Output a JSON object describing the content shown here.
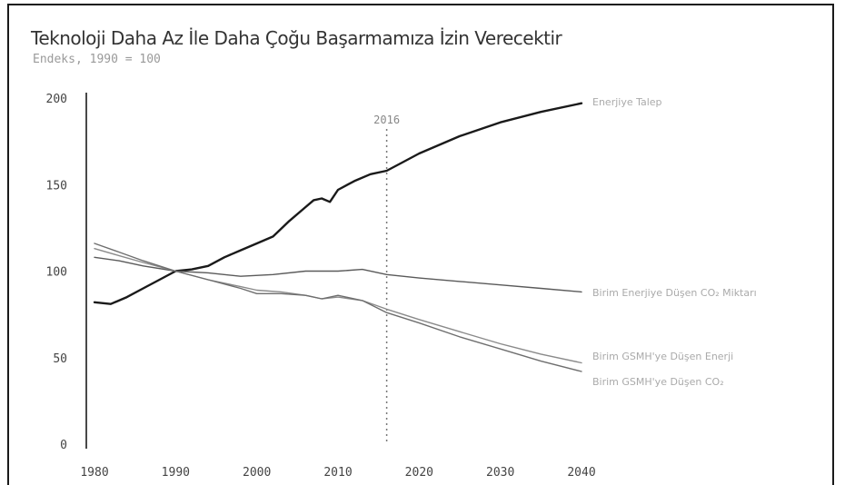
{
  "chart_data": {
    "type": "line",
    "title": "Teknoloji Daha Az İle Daha Çoğu Başarmamıza İzin Verecektir",
    "subtitle": "Endeks, 1990 = 100",
    "xlabel": "",
    "ylabel": "",
    "xlim": [
      1980,
      2040
    ],
    "ylim": [
      0,
      200
    ],
    "x_ticks": [
      1980,
      1990,
      2000,
      2010,
      2020,
      2030,
      2040
    ],
    "y_ticks": [
      0,
      50,
      100,
      150,
      200
    ],
    "grid": false,
    "annotation": {
      "x": 2016,
      "label": "2016",
      "style": "dotted"
    },
    "series": [
      {
        "name": "Enerjiye Talep",
        "color": "#1a1a1a",
        "points": [
          [
            1980,
            82
          ],
          [
            1982,
            81
          ],
          [
            1984,
            85
          ],
          [
            1986,
            90
          ],
          [
            1988,
            95
          ],
          [
            1990,
            100
          ],
          [
            1992,
            101
          ],
          [
            1994,
            103
          ],
          [
            1996,
            108
          ],
          [
            1998,
            112
          ],
          [
            2000,
            116
          ],
          [
            2002,
            120
          ],
          [
            2004,
            129
          ],
          [
            2006,
            137
          ],
          [
            2007,
            141
          ],
          [
            2008,
            142
          ],
          [
            2009,
            140
          ],
          [
            2010,
            147
          ],
          [
            2012,
            152
          ],
          [
            2014,
            156
          ],
          [
            2016,
            158
          ],
          [
            2018,
            163
          ],
          [
            2020,
            168
          ],
          [
            2025,
            178
          ],
          [
            2030,
            186
          ],
          [
            2035,
            192
          ],
          [
            2040,
            197
          ]
        ]
      },
      {
        "name": "Birim Enerjiye Düşen CO₂ Miktarı",
        "color": "#5a5a5a",
        "points": [
          [
            1980,
            108
          ],
          [
            1983,
            106
          ],
          [
            1986,
            103
          ],
          [
            1990,
            100
          ],
          [
            1994,
            99
          ],
          [
            1998,
            97
          ],
          [
            2002,
            98
          ],
          [
            2006,
            100
          ],
          [
            2010,
            100
          ],
          [
            2013,
            101
          ],
          [
            2016,
            98
          ],
          [
            2020,
            96
          ],
          [
            2025,
            94
          ],
          [
            2030,
            92
          ],
          [
            2035,
            90
          ],
          [
            2040,
            88
          ]
        ]
      },
      {
        "name": "Birim GSMH'ye Düşen Enerji",
        "color": "#8a8a8a",
        "points": [
          [
            1980,
            113
          ],
          [
            1983,
            109
          ],
          [
            1986,
            105
          ],
          [
            1990,
            100
          ],
          [
            1994,
            95
          ],
          [
            1998,
            91
          ],
          [
            2000,
            89
          ],
          [
            2003,
            88
          ],
          [
            2006,
            86
          ],
          [
            2008,
            84
          ],
          [
            2010,
            85
          ],
          [
            2013,
            83
          ],
          [
            2016,
            78
          ],
          [
            2020,
            72
          ],
          [
            2025,
            65
          ],
          [
            2030,
            58
          ],
          [
            2035,
            52
          ],
          [
            2040,
            47
          ]
        ]
      },
      {
        "name": "Birim GSMH'ye Düşen CO₂",
        "color": "#6e6e6e",
        "points": [
          [
            1980,
            116
          ],
          [
            1983,
            111
          ],
          [
            1986,
            106
          ],
          [
            1990,
            100
          ],
          [
            1994,
            95
          ],
          [
            1998,
            90
          ],
          [
            2000,
            87
          ],
          [
            2003,
            87
          ],
          [
            2006,
            86
          ],
          [
            2008,
            84
          ],
          [
            2010,
            86
          ],
          [
            2013,
            83
          ],
          [
            2016,
            76
          ],
          [
            2020,
            70
          ],
          [
            2025,
            62
          ],
          [
            2030,
            55
          ],
          [
            2035,
            48
          ],
          [
            2040,
            42
          ]
        ]
      }
    ],
    "series_labels": [
      {
        "text": "Enerjiye Talep",
        "color": "#aaaaaa"
      },
      {
        "text": "Birim Enerjiye Düşen CO₂ Miktarı",
        "color": "#aaaaaa"
      },
      {
        "text": "Birim GSMH'ye Düşen Enerji",
        "color": "#aaaaaa"
      },
      {
        "text": "Birim GSMH'ye Düşen CO₂",
        "color": "#aaaaaa"
      }
    ]
  }
}
